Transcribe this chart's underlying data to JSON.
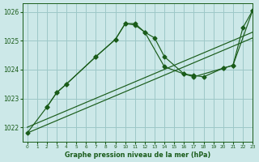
{
  "title": "Graphe pression niveau de la mer (hPa)",
  "bg_color": "#cce8e8",
  "grid_color": "#9dc8c8",
  "line_color": "#1a5c1a",
  "xlim": [
    -0.5,
    23
  ],
  "ylim": [
    1021.5,
    1026.3
  ],
  "xticks": [
    0,
    1,
    2,
    3,
    4,
    5,
    6,
    7,
    8,
    9,
    10,
    11,
    12,
    13,
    14,
    15,
    16,
    17,
    18,
    19,
    20,
    21,
    22,
    23
  ],
  "yticks": [
    1022,
    1023,
    1024,
    1025,
    1026
  ],
  "series_peak_x": [
    0,
    2,
    3,
    4,
    7,
    9,
    10,
    11,
    12,
    13,
    14,
    16,
    17,
    18,
    20,
    21,
    22,
    23
  ],
  "series_peak_y": [
    1021.8,
    1022.7,
    1023.2,
    1023.5,
    1024.45,
    1025.05,
    1025.6,
    1025.6,
    1025.3,
    1025.1,
    1024.45,
    1023.85,
    1023.8,
    1023.75,
    1024.05,
    1024.15,
    1025.45,
    1026.05
  ],
  "series_short_x": [
    2,
    3,
    4,
    7,
    9,
    10,
    11,
    12,
    14,
    16,
    17,
    20,
    21,
    23
  ],
  "series_short_y": [
    1022.7,
    1023.2,
    1023.5,
    1024.45,
    1025.05,
    1025.6,
    1025.55,
    1025.3,
    1024.1,
    1023.85,
    1023.75,
    1024.05,
    1024.15,
    1026.05
  ],
  "trend_x": [
    0,
    23
  ],
  "trend_y": [
    1021.8,
    1025.1
  ],
  "trend2_x": [
    0,
    23
  ],
  "trend2_y": [
    1022.0,
    1025.3
  ]
}
